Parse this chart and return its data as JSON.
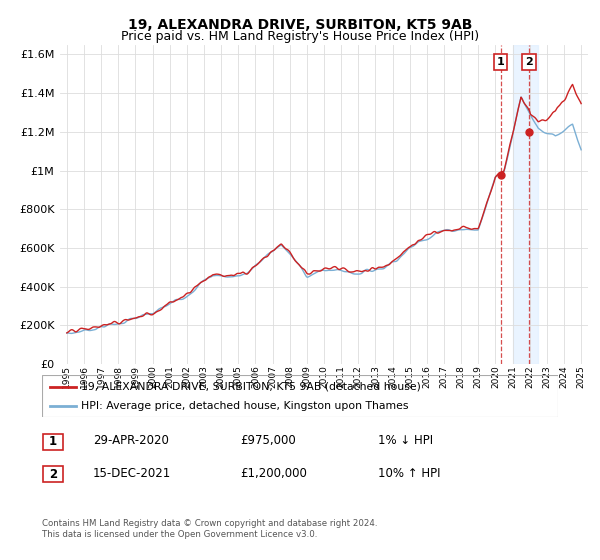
{
  "title": "19, ALEXANDRA DRIVE, SURBITON, KT5 9AB",
  "subtitle": "Price paid vs. HM Land Registry's House Price Index (HPI)",
  "legend_line1": "19, ALEXANDRA DRIVE, SURBITON, KT5 9AB (detached house)",
  "legend_line2": "HPI: Average price, detached house, Kingston upon Thames",
  "annotation1_label": "1",
  "annotation1_date": "29-APR-2020",
  "annotation1_price": "£975,000",
  "annotation1_hpi": "1% ↓ HPI",
  "annotation2_label": "2",
  "annotation2_date": "15-DEC-2021",
  "annotation2_price": "£1,200,000",
  "annotation2_hpi": "10% ↑ HPI",
  "footer": "Contains HM Land Registry data © Crown copyright and database right 2024.\nThis data is licensed under the Open Government Licence v3.0.",
  "hpi_color": "#7bafd4",
  "price_color": "#cc2222",
  "annotation_box_color": "#cc2222",
  "shaded_region_color": "#ddeeff",
  "ylim": [
    0,
    1650000
  ],
  "yticks": [
    0,
    200000,
    400000,
    600000,
    800000,
    1000000,
    1200000,
    1400000,
    1600000
  ],
  "sale1_x": 2020.3,
  "sale1_y": 975000,
  "sale2_x": 2021.96,
  "sale2_y": 1200000,
  "shade_x1": 2021.0,
  "shade_x2": 2022.5,
  "xlim_left": 1994.6,
  "xlim_right": 2025.4
}
